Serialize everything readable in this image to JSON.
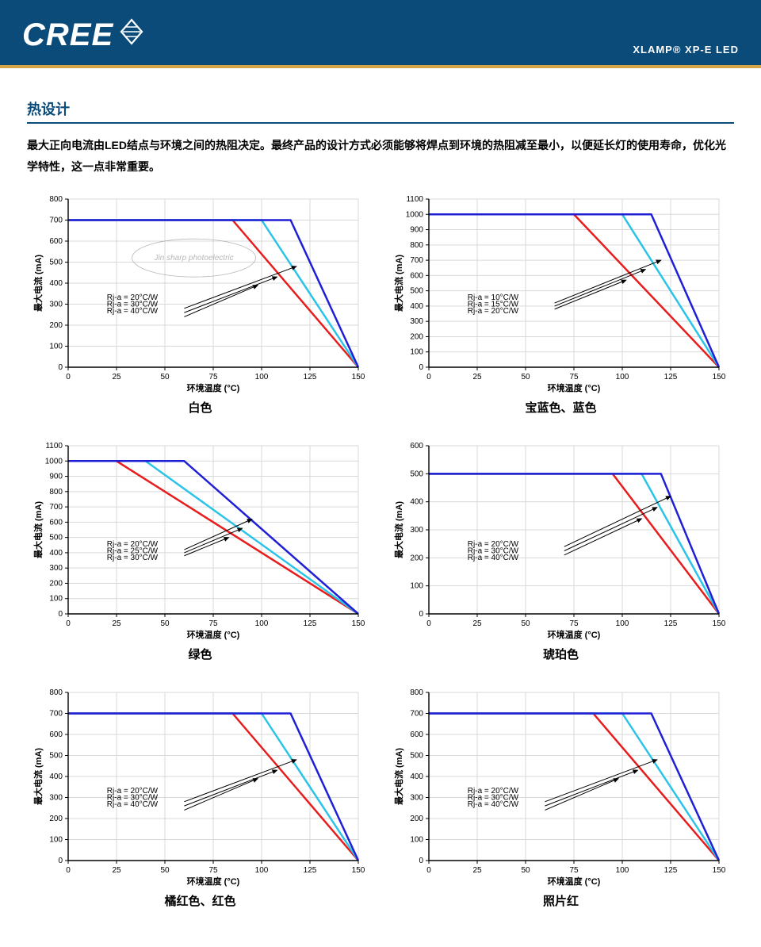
{
  "header": {
    "logo_text": "CREE",
    "product": "XLAMP® XP-E LED"
  },
  "section": {
    "title": "热设计",
    "intro": "最大正向电流由LED结点与环境之间的热阻决定。最终产品的设计方式必须能够将焊点到环境的热阻减至最小，以便延长灯的使用寿命，优化光学特性，这一点非常重要。"
  },
  "chart_common": {
    "y_label": "最大电流 (mA)",
    "x_label": "环境温度 (°C)",
    "x_min": 0,
    "x_max": 150,
    "x_step": 25,
    "grid_color": "#d9d9d9",
    "axis_color": "#000000",
    "series_colors": {
      "blue": "#1f1fd6",
      "cyan": "#2bc4e8",
      "red": "#e81c1c"
    },
    "arrow_color": "#000000",
    "line_width": 2.5,
    "label_fontsize": 11,
    "tick_fontsize": 10
  },
  "charts": [
    {
      "title": "白色",
      "y_min": 0,
      "y_max": 800,
      "y_step": 100,
      "legend": [
        "Rj-a = 20°C/W",
        "Rj-a = 30°C/W",
        "Rj-a = 40°C/W"
      ],
      "series": {
        "blue": [
          [
            0,
            700
          ],
          [
            115,
            700
          ],
          [
            150,
            0
          ]
        ],
        "cyan": [
          [
            0,
            700
          ],
          [
            100,
            700
          ],
          [
            150,
            0
          ]
        ],
        "red": [
          [
            0,
            700
          ],
          [
            85,
            700
          ],
          [
            150,
            0
          ]
        ]
      },
      "arrows": [
        [
          [
            60,
            280
          ],
          [
            118,
            480
          ]
        ],
        [
          [
            60,
            260
          ],
          [
            108,
            430
          ]
        ],
        [
          [
            60,
            240
          ],
          [
            98,
            390
          ]
        ]
      ],
      "watermark": true
    },
    {
      "title": "宝蓝色、蓝色",
      "y_min": 0,
      "y_max": 1100,
      "y_step": 100,
      "legend": [
        "Rj-a = 10°C/W",
        "Rj-a = 15°C/W",
        "Rj-a = 20°C/W"
      ],
      "series": {
        "blue": [
          [
            0,
            1000
          ],
          [
            115,
            1000
          ],
          [
            150,
            0
          ]
        ],
        "cyan": [
          [
            0,
            1000
          ],
          [
            100,
            1000
          ],
          [
            150,
            0
          ]
        ],
        "red": [
          [
            0,
            1000
          ],
          [
            75,
            1000
          ],
          [
            150,
            0
          ]
        ]
      },
      "arrows": [
        [
          [
            65,
            420
          ],
          [
            120,
            700
          ]
        ],
        [
          [
            65,
            400
          ],
          [
            112,
            640
          ]
        ],
        [
          [
            65,
            380
          ],
          [
            102,
            570
          ]
        ]
      ]
    },
    {
      "title": "绿色",
      "y_min": 0,
      "y_max": 1100,
      "y_step": 100,
      "legend": [
        "Rj-a = 20°C/W",
        "Rj-a = 25°C/W",
        "Rj-a = 30°C/W"
      ],
      "series": {
        "blue": [
          [
            0,
            1000
          ],
          [
            60,
            1000
          ],
          [
            150,
            0
          ]
        ],
        "cyan": [
          [
            0,
            1000
          ],
          [
            40,
            1000
          ],
          [
            150,
            0
          ]
        ],
        "red": [
          [
            0,
            1000
          ],
          [
            25,
            1000
          ],
          [
            150,
            0
          ]
        ]
      },
      "arrows": [
        [
          [
            60,
            420
          ],
          [
            95,
            620
          ]
        ],
        [
          [
            60,
            400
          ],
          [
            90,
            560
          ]
        ],
        [
          [
            60,
            380
          ],
          [
            83,
            500
          ]
        ]
      ]
    },
    {
      "title": "琥珀色",
      "y_min": 0,
      "y_max": 600,
      "y_step": 100,
      "legend": [
        "Rj-a = 20°C/W",
        "Rj-a = 30°C/W",
        "Rj-a = 40°C/W"
      ],
      "series": {
        "blue": [
          [
            0,
            500
          ],
          [
            120,
            500
          ],
          [
            150,
            0
          ]
        ],
        "cyan": [
          [
            0,
            500
          ],
          [
            110,
            500
          ],
          [
            150,
            0
          ]
        ],
        "red": [
          [
            0,
            500
          ],
          [
            95,
            500
          ],
          [
            150,
            0
          ]
        ]
      },
      "arrows": [
        [
          [
            70,
            240
          ],
          [
            125,
            420
          ]
        ],
        [
          [
            70,
            225
          ],
          [
            118,
            380
          ]
        ],
        [
          [
            70,
            210
          ],
          [
            110,
            340
          ]
        ]
      ]
    },
    {
      "title": "橘红色、红色",
      "y_min": 0,
      "y_max": 800,
      "y_step": 100,
      "legend": [
        "Rj-a = 20°C/W",
        "Rj-a = 30°C/W",
        "Rj-a = 40°C/W"
      ],
      "series": {
        "blue": [
          [
            0,
            700
          ],
          [
            115,
            700
          ],
          [
            150,
            0
          ]
        ],
        "cyan": [
          [
            0,
            700
          ],
          [
            100,
            700
          ],
          [
            150,
            0
          ]
        ],
        "red": [
          [
            0,
            700
          ],
          [
            85,
            700
          ],
          [
            150,
            0
          ]
        ]
      },
      "arrows": [
        [
          [
            60,
            280
          ],
          [
            118,
            480
          ]
        ],
        [
          [
            60,
            260
          ],
          [
            108,
            430
          ]
        ],
        [
          [
            60,
            240
          ],
          [
            98,
            390
          ]
        ]
      ]
    },
    {
      "title": "照片红",
      "y_min": 0,
      "y_max": 800,
      "y_step": 100,
      "legend": [
        "Rj-a = 20°C/W",
        "Rj-a = 30°C/W",
        "Rj-a = 40°C/W"
      ],
      "series": {
        "blue": [
          [
            0,
            700
          ],
          [
            115,
            700
          ],
          [
            150,
            0
          ]
        ],
        "cyan": [
          [
            0,
            700
          ],
          [
            100,
            700
          ],
          [
            150,
            0
          ]
        ],
        "red": [
          [
            0,
            700
          ],
          [
            85,
            700
          ],
          [
            150,
            0
          ]
        ]
      },
      "arrows": [
        [
          [
            60,
            280
          ],
          [
            118,
            480
          ]
        ],
        [
          [
            60,
            260
          ],
          [
            108,
            430
          ]
        ],
        [
          [
            60,
            240
          ],
          [
            98,
            390
          ]
        ]
      ]
    }
  ]
}
